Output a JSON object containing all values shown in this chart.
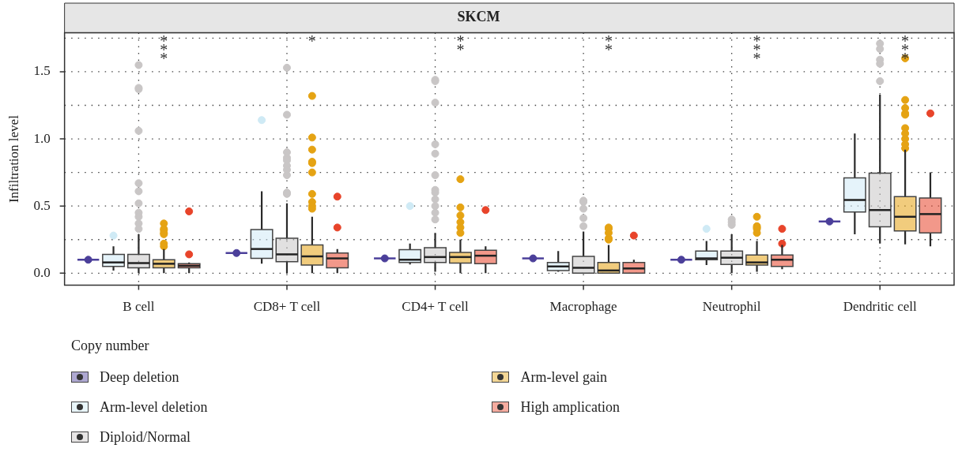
{
  "chart_data": {
    "type": "box",
    "title": "SKCM",
    "ylabel": "Infiltration level",
    "legend_title": "Copy number",
    "legend": "bottom",
    "grid": true,
    "marker": "circle",
    "categories": [
      "B cell",
      "CD8+ T cell",
      "CD4+ T cell",
      "Macrophage",
      "Neutrophil",
      "Dendritic cell"
    ],
    "ylim": [
      -0.09,
      1.79
    ],
    "yticks": [
      {
        "value": 0,
        "label": "0.0"
      },
      {
        "value": 0.25,
        "label": null
      },
      {
        "value": 0.5,
        "label": "0.5"
      },
      {
        "value": 0.75,
        "label": null
      },
      {
        "value": 1,
        "label": "1.0"
      },
      {
        "value": 1.25,
        "label": null
      },
      {
        "value": 1.5,
        "label": "1.5"
      },
      {
        "value": 1.75,
        "label": null
      }
    ],
    "annotations": [
      "***",
      "*",
      "**",
      "**",
      "***",
      "***"
    ],
    "series": [
      {
        "name": "Deep deletion",
        "color": "#4b3f9a",
        "boxes": [
          {
            "low": 0.1,
            "q1": 0.1,
            "median": 0.1,
            "q3": 0.1,
            "high": 0.1,
            "outliers": [
              0.1
            ]
          },
          {
            "low": 0.15,
            "q1": 0.15,
            "median": 0.15,
            "q3": 0.15,
            "high": 0.15,
            "outliers": [
              0.15
            ]
          },
          {
            "low": 0.11,
            "q1": 0.11,
            "median": 0.11,
            "q3": 0.11,
            "high": 0.11,
            "outliers": [
              0.11
            ]
          },
          {
            "low": 0.11,
            "q1": 0.11,
            "median": 0.11,
            "q3": 0.11,
            "high": 0.11,
            "outliers": [
              0.11
            ]
          },
          {
            "low": 0.1,
            "q1": 0.1,
            "median": 0.1,
            "q3": 0.1,
            "high": 0.1,
            "outliers": [
              0.1
            ]
          },
          {
            "low": 0.385,
            "q1": 0.385,
            "median": 0.385,
            "q3": 0.385,
            "high": 0.385,
            "outliers": [
              0.385
            ]
          }
        ]
      },
      {
        "name": "Arm-level deletion",
        "color": "#cfeaf5",
        "boxes": [
          {
            "low": 0.02,
            "q1": 0.05,
            "median": 0.08,
            "q3": 0.14,
            "high": 0.2,
            "outliers": [
              0.28
            ]
          },
          {
            "low": 0.07,
            "q1": 0.11,
            "median": 0.18,
            "q3": 0.325,
            "high": 0.61,
            "outliers": [
              1.14
            ]
          },
          {
            "low": 0.065,
            "q1": 0.08,
            "median": 0.1,
            "q3": 0.175,
            "high": 0.22,
            "outliers": [
              0.5
            ]
          },
          {
            "low": 0.01,
            "q1": 0.02,
            "median": 0.05,
            "q3": 0.08,
            "high": 0.165
          },
          {
            "low": 0.06,
            "q1": 0.1,
            "median": 0.11,
            "q3": 0.165,
            "high": 0.24,
            "outliers": [
              0.33
            ]
          },
          {
            "low": 0.29,
            "q1": 0.455,
            "median": 0.545,
            "q3": 0.71,
            "high": 1.04
          }
        ]
      },
      {
        "name": "Diploid/Normal",
        "color": "#c9c6c6",
        "boxes": [
          {
            "low": 0,
            "q1": 0.04,
            "median": 0.075,
            "q3": 0.14,
            "high": 0.29,
            "outliers": [
              1.55,
              1.38,
              1.37,
              1.06,
              0.67,
              0.61,
              0.52,
              0.45,
              0.42,
              0.37,
              0.33
            ]
          },
          {
            "low": 0,
            "q1": 0.085,
            "median": 0.14,
            "q3": 0.26,
            "high": 0.52,
            "outliers": [
              1.53,
              1.18,
              0.9,
              0.86,
              0.84,
              0.8,
              0.77,
              0.73,
              0.6,
              0.59
            ]
          },
          {
            "low": 0.01,
            "q1": 0.08,
            "median": 0.12,
            "q3": 0.19,
            "high": 0.3,
            "outliers": [
              1.44,
              1.43,
              1.27,
              0.96,
              0.89,
              0.73,
              0.62,
              0.6,
              0.55,
              0.5,
              0.45,
              0.4
            ]
          },
          {
            "low": 0,
            "q1": 0,
            "median": 0.04,
            "q3": 0.125,
            "high": 0.31,
            "outliers": [
              0.54,
              0.53,
              0.48,
              0.41,
              0.35
            ]
          },
          {
            "low": 0,
            "q1": 0.065,
            "median": 0.115,
            "q3": 0.165,
            "high": 0.29,
            "outliers": [
              0.4,
              0.38,
              0.36
            ]
          },
          {
            "low": 0.22,
            "q1": 0.345,
            "median": 0.47,
            "q3": 0.745,
            "high": 1.33,
            "outliers": [
              1.71,
              1.67,
              1.59,
              1.56,
              1.43
            ]
          }
        ]
      },
      {
        "name": "Arm-level gain",
        "color": "#e5a313",
        "boxes": [
          {
            "low": 0,
            "q1": 0.04,
            "median": 0.07,
            "q3": 0.1,
            "high": 0.18,
            "outliers": [
              0.37,
              0.33,
              0.32,
              0.3,
              0.29,
              0.22,
              0.2
            ]
          },
          {
            "low": 0,
            "q1": 0.06,
            "median": 0.125,
            "q3": 0.21,
            "high": 0.42,
            "outliers": [
              1.32,
              1.01,
              0.92,
              0.83,
              0.82,
              0.75,
              0.59,
              0.53,
              0.5,
              0.48
            ]
          },
          {
            "low": 0,
            "q1": 0.075,
            "median": 0.12,
            "q3": 0.155,
            "high": 0.25,
            "outliers": [
              0.7,
              0.49,
              0.43,
              0.38,
              0.34,
              0.3
            ]
          },
          {
            "low": 0,
            "q1": 0,
            "median": 0.02,
            "q3": 0.08,
            "high": 0.21,
            "outliers": [
              0.34,
              0.33,
              0.3,
              0.26,
              0.25
            ]
          },
          {
            "low": 0.01,
            "q1": 0.06,
            "median": 0.08,
            "q3": 0.135,
            "high": 0.24,
            "outliers": [
              0.42,
              0.35,
              0.34,
              0.33,
              0.3
            ]
          },
          {
            "low": 0.215,
            "q1": 0.315,
            "median": 0.42,
            "q3": 0.57,
            "high": 0.92,
            "outliers": [
              1.6,
              1.29,
              1.23,
              1.19,
              1.18,
              1.08,
              1.04,
              1,
              0.96,
              0.93
            ]
          }
        ]
      },
      {
        "name": "High amplication",
        "color": "#e8442a",
        "boxes": [
          {
            "low": 0,
            "q1": 0.04,
            "median": 0.055,
            "q3": 0.07,
            "high": 0.08,
            "outliers": [
              0.46,
              0.14
            ]
          },
          {
            "low": 0,
            "q1": 0.04,
            "median": 0.11,
            "q3": 0.15,
            "high": 0.18,
            "outliers": [
              0.57,
              0.34
            ]
          },
          {
            "low": 0,
            "q1": 0.07,
            "median": 0.13,
            "q3": 0.17,
            "high": 0.2,
            "outliers": [
              0.47
            ]
          },
          {
            "low": 0,
            "q1": 0,
            "median": 0.035,
            "q3": 0.08,
            "high": 0.1,
            "outliers": [
              0.28
            ]
          },
          {
            "low": 0.03,
            "q1": 0.05,
            "median": 0.1,
            "q3": 0.135,
            "high": 0.21,
            "outliers": [
              0.33,
              0.22
            ]
          },
          {
            "low": 0.2,
            "q1": 0.3,
            "median": 0.44,
            "q3": 0.56,
            "high": 0.75,
            "outliers": [
              1.19
            ]
          }
        ]
      }
    ]
  }
}
